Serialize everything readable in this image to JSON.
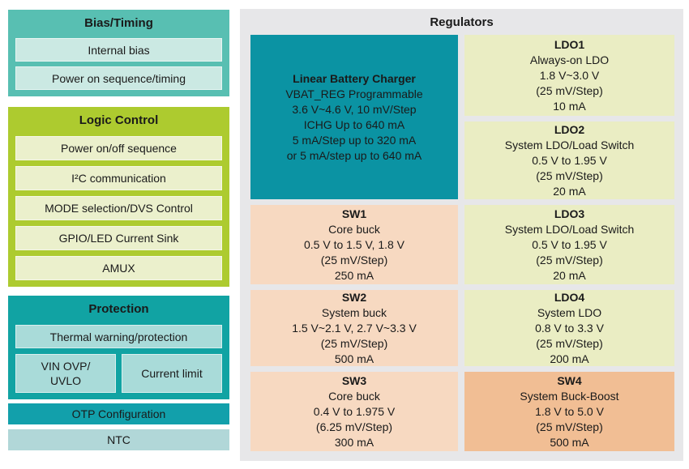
{
  "palette": {
    "bias_bg": "#58BFB2",
    "bias_item_bg": "#CBE9E3",
    "logic_bg": "#ADCB2F",
    "logic_item_bg": "#EBF0CC",
    "protection_bg": "#11A3A3",
    "protection_item_bg": "#A9DBD9",
    "otp_bg": "#12A0AB",
    "ntc_bg": "#B1D7D8",
    "panel_bg": "#E7E7E9",
    "charger_bg": "#0B93A3",
    "ldo_bg": "#EAEDC3",
    "sw_bg": "#F7D9C1",
    "sw4_bg": "#F1BE94",
    "text": "#1A1A1A"
  },
  "left": {
    "bias": {
      "title": "Bias/Timing",
      "items": [
        "Internal bias",
        "Power on sequence/timing"
      ]
    },
    "logic": {
      "title": "Logic Control",
      "items": [
        "Power on/off sequence",
        "I²C communication",
        "MODE selection/DVS Control",
        "GPIO/LED Current Sink",
        "AMUX"
      ]
    },
    "protection": {
      "title": "Protection",
      "thermal": "Thermal warning/protection",
      "vin_lines": [
        "VIN OVP/",
        "UVLO"
      ],
      "current_limit": "Current limit"
    },
    "otp": "OTP Configuration",
    "ntc": "NTC"
  },
  "regulators": {
    "title": "Regulators",
    "charger": {
      "title": "Linear Battery Charger",
      "lines": [
        "VBAT_REG Programmable",
        "3.6 V~4.6 V, 10 mV/Step",
        "ICHG Up to 640 mA",
        "5 mA/Step up to 320 mA",
        "or 5 mA/step up to 640 mA"
      ]
    },
    "blocks": [
      {
        "name": "LDO1",
        "lines": [
          "Always-on LDO",
          "1.8 V~3.0 V",
          "(25 mV/Step)",
          "10 mA"
        ]
      },
      {
        "name": "LDO2",
        "lines": [
          "System LDO/Load Switch",
          "0.5 V to 1.95 V",
          "(25 mV/Step)",
          "20 mA"
        ]
      },
      {
        "name": "SW1",
        "lines": [
          "Core buck",
          "0.5 V to 1.5 V, 1.8 V",
          "(25 mV/Step)",
          "250 mA"
        ]
      },
      {
        "name": "LDO3",
        "lines": [
          "System LDO/Load Switch",
          "0.5 V to 1.95 V",
          "(25 mV/Step)",
          "20 mA"
        ]
      },
      {
        "name": "SW2",
        "lines": [
          "System buck",
          "1.5 V~2.1 V, 2.7 V~3.3 V",
          "(25 mV/Step)",
          "500 mA"
        ]
      },
      {
        "name": "LDO4",
        "lines": [
          "System LDO",
          "0.8 V to 3.3 V",
          "(25 mV/Step)",
          "200 mA"
        ]
      },
      {
        "name": "SW3",
        "lines": [
          "Core buck",
          "0.4 V to 1.975 V",
          "(6.25 mV/Step)",
          "300 mA"
        ]
      },
      {
        "name": "SW4",
        "lines": [
          "System Buck-Boost",
          "1.8 V to 5.0 V",
          "(25 mV/Step)",
          "500 mA"
        ]
      }
    ]
  }
}
